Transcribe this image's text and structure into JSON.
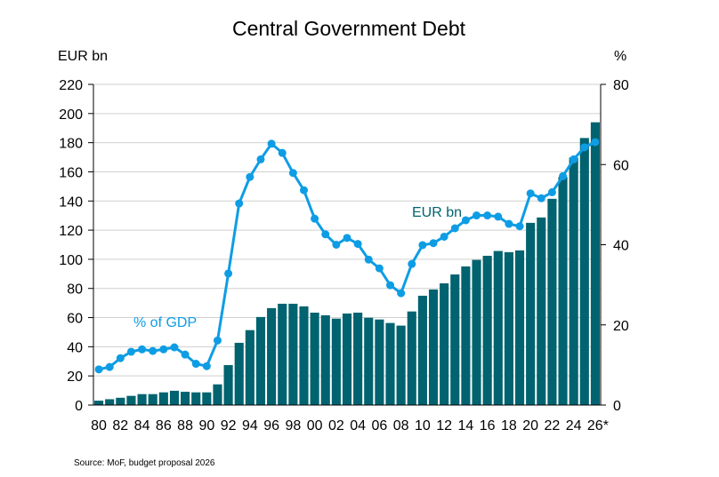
{
  "chart_data": {
    "type": "bar",
    "title": "Central Government Debt",
    "xlabel": "",
    "ylabel": "EUR bn",
    "y2label": "%",
    "ylim": [
      0,
      220
    ],
    "y2lim": [
      0,
      80
    ],
    "yticks": [
      "0",
      "20",
      "40",
      "60",
      "80",
      "100",
      "120",
      "140",
      "160",
      "180",
      "200",
      "220"
    ],
    "y2ticks": [
      "0",
      "20",
      "40",
      "60",
      "80"
    ],
    "grid": true,
    "categories": [
      "80",
      "81",
      "82",
      "83",
      "84",
      "85",
      "86",
      "87",
      "88",
      "89",
      "90",
      "91",
      "92",
      "93",
      "94",
      "95",
      "96",
      "97",
      "98",
      "99",
      "00",
      "01",
      "02",
      "03",
      "04",
      "05",
      "06",
      "07",
      "08",
      "09",
      "10",
      "11",
      "12",
      "13",
      "14",
      "15",
      "16",
      "17",
      "18",
      "19",
      "20",
      "21",
      "22",
      "23",
      "24",
      "25",
      "26*"
    ],
    "xtick_labels": [
      "80",
      "82",
      "84",
      "86",
      "88",
      "90",
      "92",
      "94",
      "96",
      "98",
      "00",
      "02",
      "04",
      "06",
      "08",
      "10",
      "12",
      "14",
      "16",
      "18",
      "20",
      "22",
      "24",
      "26*"
    ],
    "series": [
      {
        "name": "EUR bn",
        "type": "bar",
        "axis": "left",
        "color": "#00636f",
        "values": [
          3,
          4,
          5,
          6.3,
          7.5,
          7.5,
          8.7,
          9.8,
          9.1,
          8.7,
          8.7,
          14.2,
          27.4,
          42.7,
          51.4,
          60.4,
          66.5,
          69.5,
          69.5,
          67.7,
          63.4,
          61.6,
          59.3,
          62.8,
          63.4,
          59.9,
          58.7,
          56.3,
          54.5,
          64.2,
          75,
          79.3,
          83.5,
          89.6,
          95.1,
          99.6,
          102.4,
          105.7,
          104.9,
          106.1,
          125,
          128.7,
          141.5,
          156.5,
          169.8,
          183.2,
          194
        ]
      },
      {
        "name": "% of GDP",
        "type": "line",
        "axis": "right",
        "color": "#0e9de4",
        "values": [
          8.9,
          9.5,
          11.7,
          13.3,
          13.9,
          13.5,
          13.9,
          14.4,
          12.6,
          10.3,
          9.7,
          16.1,
          32.8,
          50.3,
          56.9,
          61.3,
          65.2,
          62.9,
          57.9,
          53.6,
          46.5,
          42.6,
          40.0,
          41.7,
          40.2,
          36.3,
          34.1,
          29.9,
          27.9,
          35.2,
          39.9,
          40.4,
          42.0,
          44.1,
          46.1,
          47.3,
          47.3,
          47.0,
          45.2,
          44.6,
          52.8,
          51.6,
          53.1,
          57.1,
          61.3,
          64.3,
          65.6
        ]
      }
    ],
    "annotations": [
      {
        "text": "EUR bn",
        "series": "EUR bn"
      },
      {
        "text": "% of GDP",
        "series": "% of GDP"
      }
    ],
    "source": "Source: MoF, budget proposal 2026"
  }
}
